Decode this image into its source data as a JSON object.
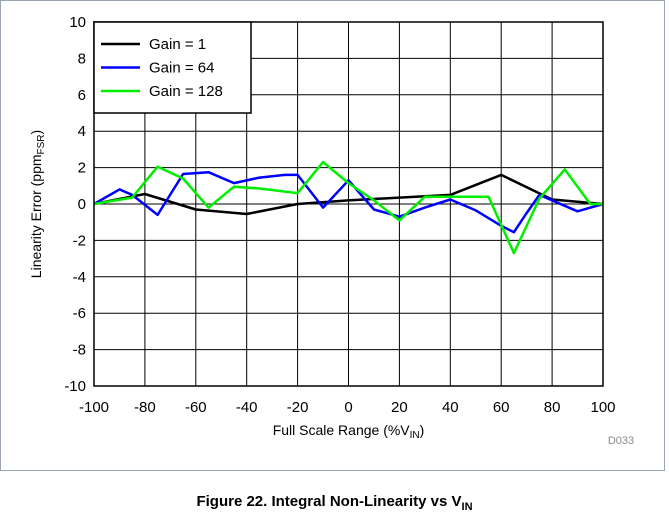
{
  "chart_data": {
    "type": "line",
    "xlabel": {
      "text": "Full Scale Range (%V",
      "sub": "IN",
      "close": ")"
    },
    "ylabel": {
      "text": "Linearity Error (ppm",
      "sub": "FSR",
      "close": ")"
    },
    "xlim": [
      -100,
      100
    ],
    "ylim": [
      -10,
      10
    ],
    "xticks": [
      -100,
      -80,
      -60,
      -40,
      -20,
      0,
      20,
      40,
      60,
      80,
      100
    ],
    "yticks": [
      -10,
      -8,
      -6,
      -4,
      -2,
      0,
      2,
      4,
      6,
      8,
      10
    ],
    "grid": true,
    "legend_position": "top-left",
    "series": [
      {
        "name": "Gain = 1",
        "color": "#000000",
        "x": [
          -100,
          -80,
          -60,
          -40,
          -20,
          0,
          20,
          40,
          60,
          80,
          100
        ],
        "y": [
          0,
          0.55,
          -0.3,
          -0.55,
          0,
          0.2,
          0.35,
          0.5,
          1.6,
          0.25,
          0
        ]
      },
      {
        "name": "Gain = 64",
        "color": "#0000ff",
        "x": [
          -100,
          -90,
          -85,
          -75,
          -65,
          -55,
          -45,
          -35,
          -25,
          -20,
          -10,
          0,
          10,
          20,
          30,
          40,
          50,
          60,
          65,
          70,
          75,
          80,
          90,
          100
        ],
        "y": [
          0,
          0.8,
          0.5,
          -0.6,
          1.65,
          1.75,
          1.15,
          1.45,
          1.6,
          1.6,
          -0.2,
          1.3,
          -0.3,
          -0.7,
          -0.2,
          0.25,
          -0.35,
          -1.2,
          -1.55,
          -0.5,
          0.5,
          0.2,
          -0.4,
          0
        ]
      },
      {
        "name": "Gain = 128",
        "color": "#00ee00",
        "x": [
          -100,
          -85,
          -75,
          -65,
          -55,
          -45,
          -35,
          -20,
          -10,
          0,
          10,
          20,
          30,
          40,
          45,
          55,
          65,
          75,
          85,
          95,
          100
        ],
        "y": [
          0,
          0.35,
          2.05,
          1.4,
          -0.2,
          0.95,
          0.85,
          0.6,
          2.3,
          1.15,
          0.2,
          -0.9,
          0.4,
          0.4,
          0.4,
          0.4,
          -2.7,
          0.3,
          1.9,
          0,
          0
        ]
      }
    ],
    "footnote": "D033"
  },
  "caption": {
    "text": "Figure 22. Integral Non-Linearity vs V",
    "sub": "IN"
  }
}
